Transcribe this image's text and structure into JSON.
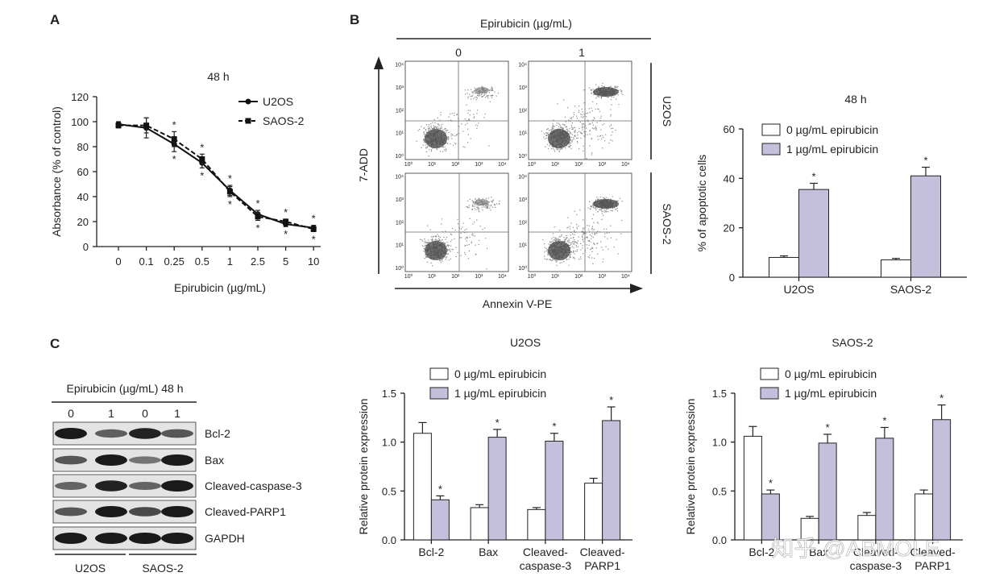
{
  "panels": {
    "a": "A",
    "b": "B",
    "c": "C"
  },
  "panel_a": {
    "title": "48 h",
    "xlabel": "Epirubicin (µg/mL)",
    "ylabel": "Absorbance (% of control)"
  },
  "panel_b_flow": {
    "header": "Epirubicin (µg/mL)",
    "col_labels": [
      "0",
      "1"
    ],
    "row_labels": [
      "U2OS",
      "SAOS-2"
    ],
    "yaxis": "7-ADD",
    "xaxis": "Annexin V-PE",
    "axis_ticks": [
      "10⁰",
      "10¹",
      "10²",
      "10³",
      "10⁴"
    ]
  },
  "panel_c_blot": {
    "header": "Epirubicin (µg/mL) 48 h",
    "lane_labels": [
      "0",
      "1",
      "0",
      "1"
    ],
    "proteins": [
      "Bcl-2",
      "Bax",
      "Cleaved-caspase-3",
      "Cleaved-PARP1",
      "GAPDH"
    ],
    "cell_lines": [
      "U2OS",
      "SAOS-2"
    ]
  },
  "watermark": "知乎 @ABMOLE",
  "chart_data": [
    {
      "id": "A",
      "type": "line",
      "title": "48 h",
      "xlabel": "Epirubicin (µg/mL)",
      "ylabel": "Absorbance (% of control)",
      "categories": [
        "0",
        "0.1",
        "0.25",
        "0.5",
        "1",
        "2.5",
        "5",
        "10"
      ],
      "ylim": [
        0,
        120
      ],
      "yticks": [
        0,
        20,
        40,
        60,
        80,
        100,
        120
      ],
      "series": [
        {
          "name": "U2OS",
          "marker": "circle",
          "line": "solid",
          "values": [
            98,
            95,
            82,
            67,
            45,
            26,
            18,
            15
          ],
          "errors": [
            2,
            8,
            6,
            4,
            4,
            3,
            2,
            2
          ]
        },
        {
          "name": "SAOS-2",
          "marker": "square",
          "line": "dashed",
          "values": [
            97,
            97,
            86,
            70,
            44,
            24,
            20,
            14
          ],
          "errors": [
            2,
            6,
            6,
            4,
            4,
            3,
            2,
            2
          ]
        }
      ],
      "star": "*",
      "legend": "top-right"
    },
    {
      "id": "B",
      "type": "bar",
      "title": "48 h",
      "ylabel": "% of apoptotic cells",
      "categories": [
        "U2OS",
        "SAOS-2"
      ],
      "ylim": [
        0,
        60
      ],
      "yticks": [
        0,
        20,
        40,
        60
      ],
      "series": [
        {
          "name": "0 µg/mL epirubicin",
          "fill": "white",
          "values": [
            8,
            7
          ],
          "errors": [
            0.6,
            0.6
          ]
        },
        {
          "name": "1 µg/mL epirubicin",
          "fill": "lavender",
          "values": [
            35.5,
            41
          ],
          "errors": [
            2.5,
            3.5
          ]
        }
      ],
      "star": "*",
      "legend": "top"
    },
    {
      "id": "C-U2OS",
      "type": "bar",
      "title": "U2OS",
      "ylabel": "Relative protein expression",
      "categories": [
        "Bcl-2",
        "Bax",
        "Cleaved-\ncaspase-3",
        "Cleaved-\nPARP1"
      ],
      "ylim": [
        0,
        1.5
      ],
      "yticks": [
        "0.0",
        "0.5",
        "1.0",
        "1.5"
      ],
      "series": [
        {
          "name": "0 µg/mL epirubicin",
          "fill": "white",
          "values": [
            1.09,
            0.33,
            0.31,
            0.58
          ],
          "errors": [
            0.11,
            0.03,
            0.02,
            0.05
          ]
        },
        {
          "name": "1 µg/mL epirubicin",
          "fill": "lavender",
          "values": [
            0.41,
            1.05,
            1.01,
            1.22
          ],
          "errors": [
            0.04,
            0.08,
            0.08,
            0.14
          ]
        }
      ],
      "star": "*",
      "legend": "top"
    },
    {
      "id": "C-SAOS-2",
      "type": "bar",
      "title": "SAOS-2",
      "ylabel": "Relative protein expression",
      "categories": [
        "Bcl-2",
        "Bax",
        "Cleaved-\ncaspase-3",
        "Cleaved-\nPARP1"
      ],
      "ylim": [
        0,
        1.5
      ],
      "yticks": [
        "0.0",
        "0.5",
        "1.0",
        "1.5"
      ],
      "series": [
        {
          "name": "0 µg/mL epirubicin",
          "fill": "white",
          "values": [
            1.06,
            0.22,
            0.25,
            0.47
          ],
          "errors": [
            0.1,
            0.02,
            0.03,
            0.04
          ]
        },
        {
          "name": "1 µg/mL epirubicin",
          "fill": "lavender",
          "values": [
            0.47,
            0.99,
            1.04,
            1.23
          ],
          "errors": [
            0.04,
            0.09,
            0.11,
            0.15
          ]
        }
      ],
      "star": "*",
      "legend": "top"
    }
  ]
}
